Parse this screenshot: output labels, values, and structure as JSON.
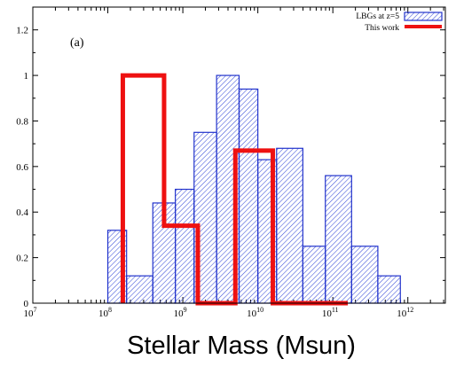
{
  "chart_data": {
    "type": "bar",
    "title": "",
    "panel_label": "(a)",
    "xlabel": "Stellar Mass (Msun)",
    "ylabel": "",
    "xscale": "log",
    "xlim_log10": [
      7,
      12.5
    ],
    "ylim": [
      0,
      1.3
    ],
    "x_ticks": [
      {
        "exp": 7,
        "base": "10",
        "sup": "7"
      },
      {
        "exp": 8,
        "base": "10",
        "sup": "8"
      },
      {
        "exp": 9,
        "base": "10",
        "sup": "9"
      },
      {
        "exp": 10,
        "base": "10",
        "sup": "10"
      },
      {
        "exp": 11,
        "base": "10",
        "sup": "11"
      },
      {
        "exp": 12,
        "base": "10",
        "sup": "12"
      }
    ],
    "y_ticks": [
      {
        "value": 0,
        "label": "0"
      },
      {
        "value": 0.2,
        "label": "0.2"
      },
      {
        "value": 0.4,
        "label": "0.4"
      },
      {
        "value": 0.6,
        "label": "0.6"
      },
      {
        "value": 0.8,
        "label": "0.8"
      },
      {
        "value": 1,
        "label": "1"
      },
      {
        "value": 1.2,
        "label": "1.2"
      }
    ],
    "grid": false,
    "legend_position": "top-right",
    "series": [
      {
        "name": "LBGs at z=5",
        "style": "hatched-bars",
        "color": "#2233cc",
        "bin_edges_log10": [
          8.0,
          8.25,
          8.6,
          8.9,
          9.15,
          9.45,
          9.75,
          10.0,
          10.25,
          10.6,
          10.9,
          11.25,
          11.6,
          11.9
        ],
        "values": [
          0.32,
          0.12,
          0.44,
          0.5,
          0.75,
          1.0,
          0.94,
          0.63,
          0.68,
          0.25,
          0.56,
          0.25,
          0.12
        ]
      },
      {
        "name": "This work",
        "style": "step-outline",
        "color": "#ee1111",
        "bin_edges_log10": [
          8.2,
          8.75,
          9.2,
          9.7,
          10.2,
          11.2
        ],
        "values": [
          1.0,
          0.34,
          0.0,
          0.67,
          0.0
        ]
      }
    ]
  }
}
